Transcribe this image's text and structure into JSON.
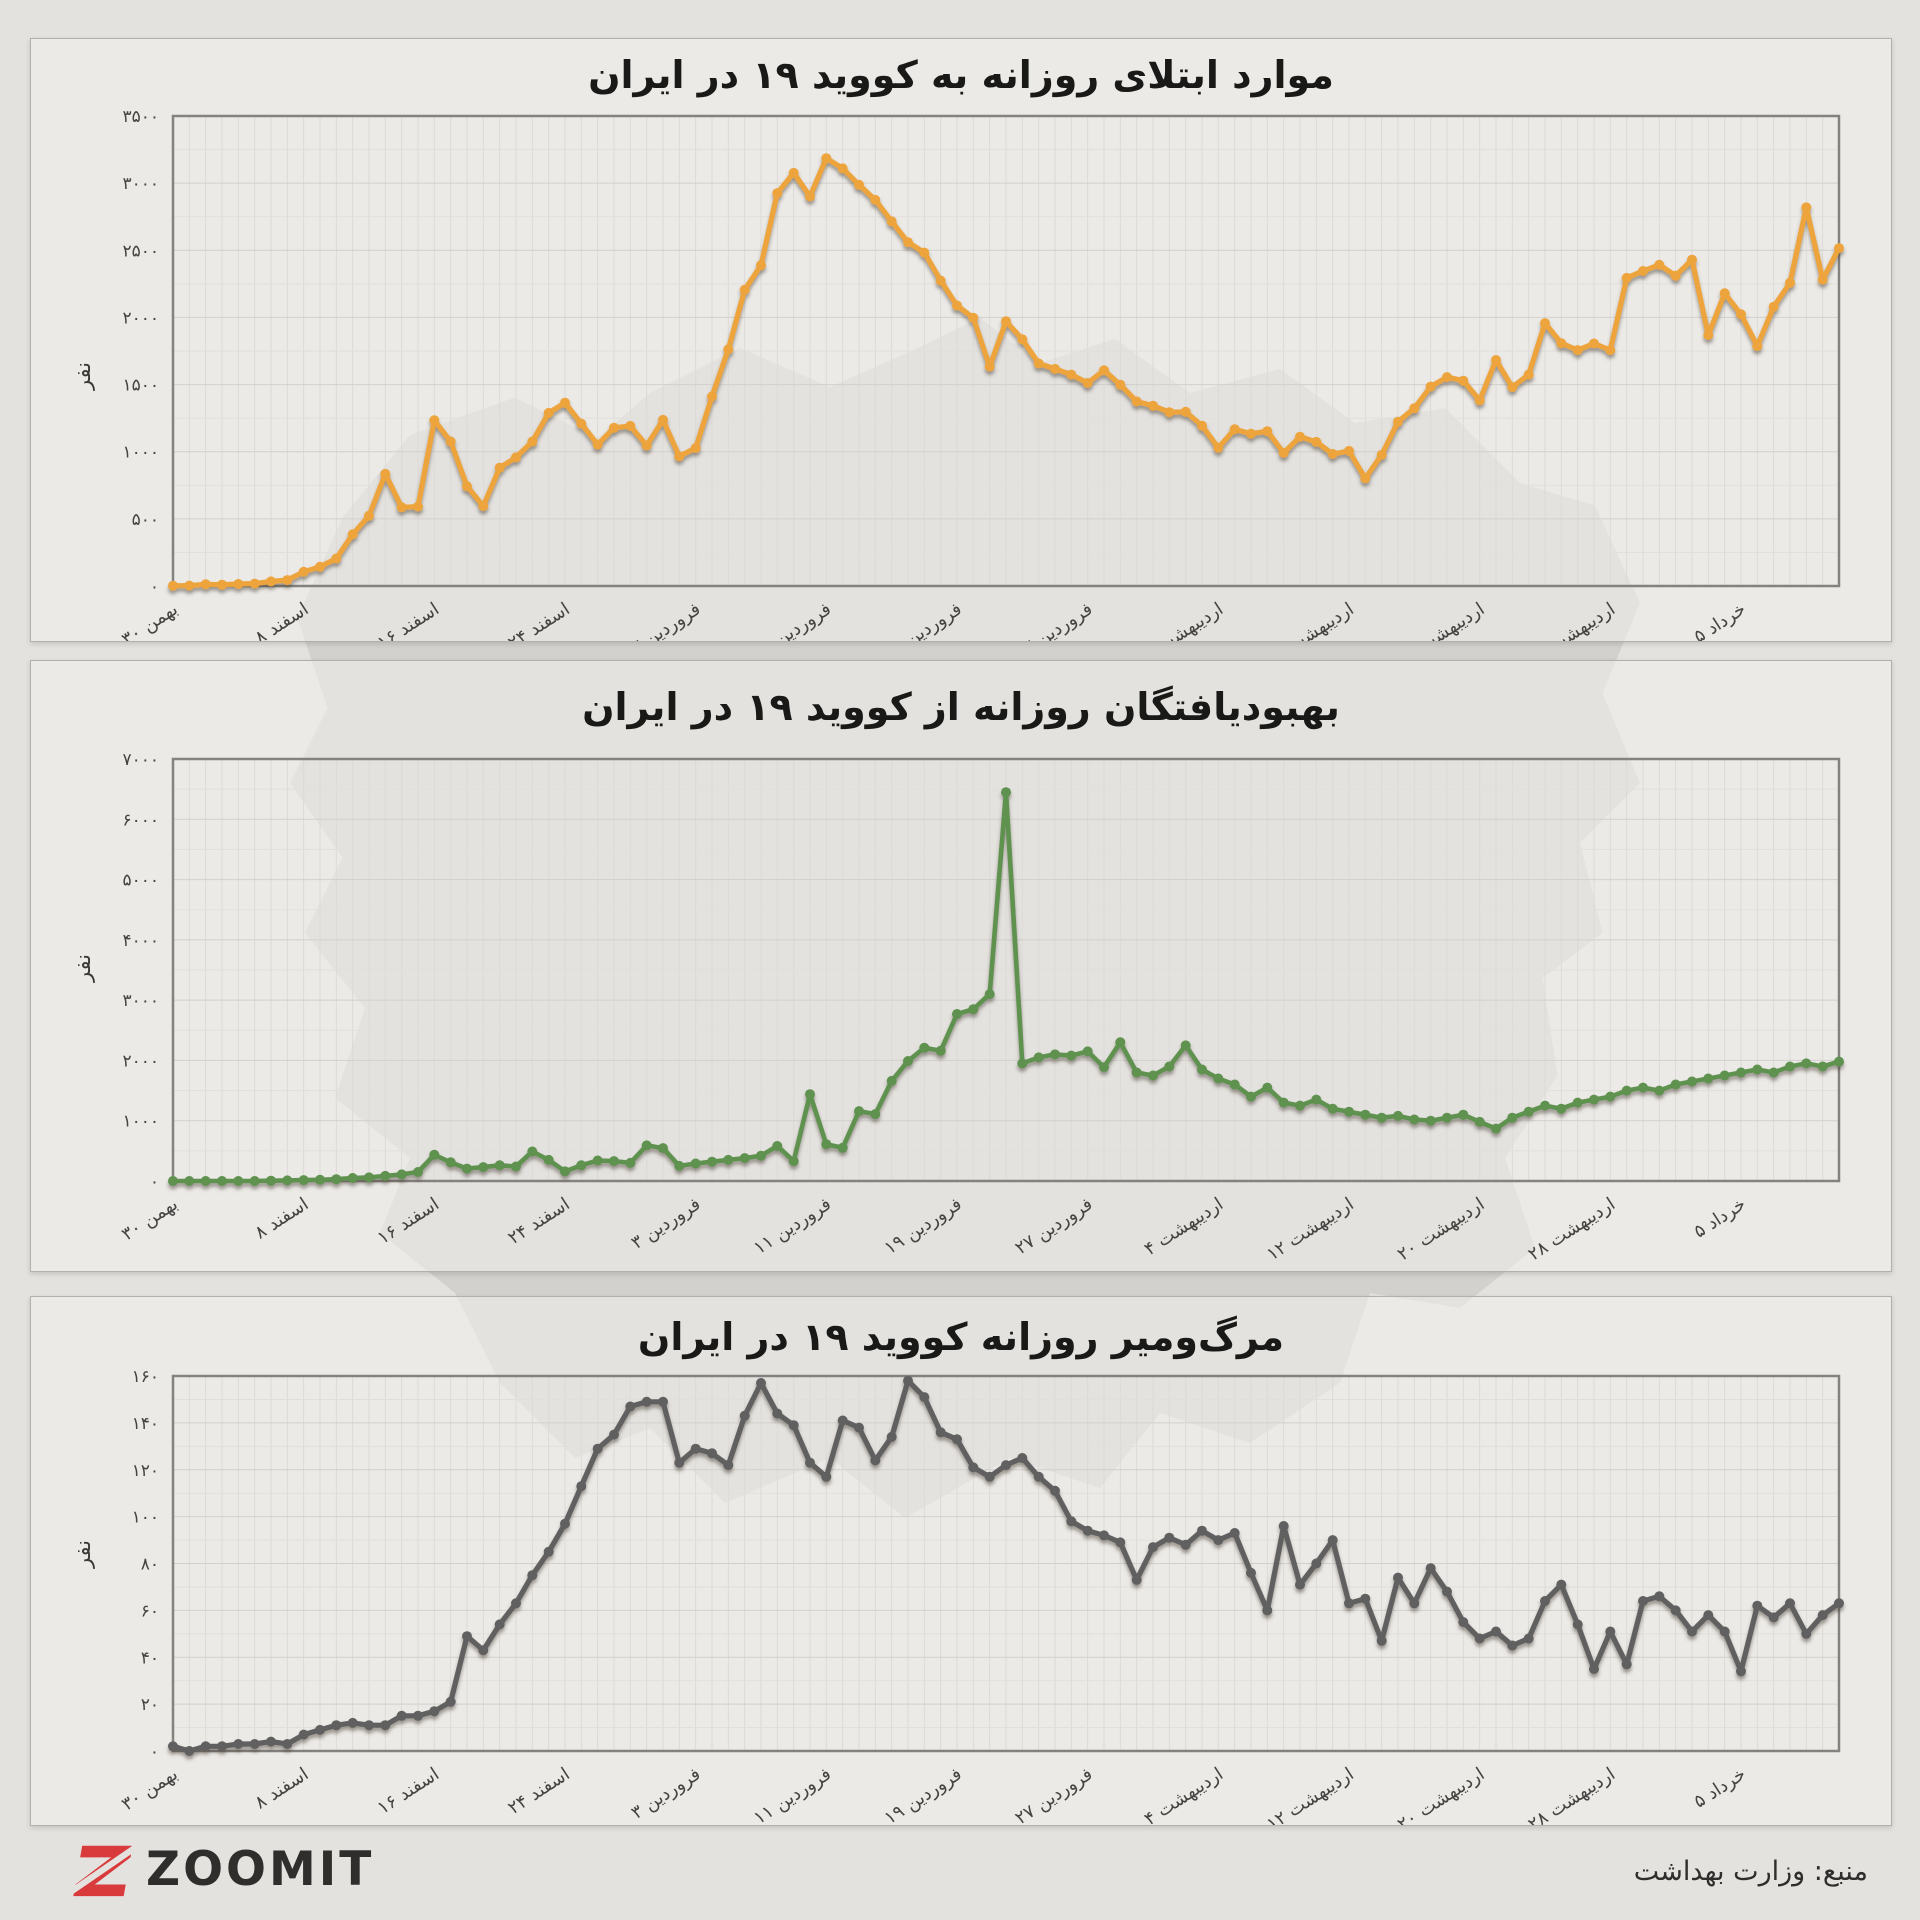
{
  "x_axis": {
    "tick_days": [
      0,
      8,
      16,
      24,
      32,
      40,
      48,
      56,
      64,
      72,
      80,
      88,
      96
    ],
    "tick_labels": [
      "۳۰ بهمن",
      "۸ اسفند",
      "۱۶ اسفند",
      "۲۴ اسفند",
      "۳ فروردین",
      "۱۱ فروردین",
      "۱۹ فروردین",
      "۲۷ فروردین",
      "۴ اردیبهشت",
      "۱۲ اردیبهشت",
      "۲۰ اردیبهشت",
      "۲۸ اردیبهشت",
      "۵ خرداد"
    ]
  },
  "chart_data": [
    {
      "type": "line",
      "title": "موارد ابتلای روزانه به کووید ۱۹ در ایران",
      "ylabel": "نفر",
      "ylim": [
        0,
        3500
      ],
      "ytick_step": 500,
      "grid": true,
      "legend": "none",
      "line_color": "#eda43c",
      "values": [
        2,
        3,
        13,
        10,
        15,
        18,
        34,
        44,
        106,
        143,
        205,
        385,
        523,
        835,
        586,
        591,
        1234,
        1076,
        743,
        595,
        881,
        958,
        1075,
        1289,
        1365,
        1209,
        1053,
        1178,
        1192,
        1046,
        1237,
        966,
        1028,
        1411,
        1762,
        2206,
        2389,
        2926,
        3076,
        2901,
        3186,
        3110,
        2988,
        2875,
        2715,
        2560,
        2483,
        2274,
        2089,
        1997,
        1634,
        1972,
        1837,
        1657,
        1617,
        1574,
        1512,
        1606,
        1499,
        1374,
        1343,
        1294,
        1297,
        1194,
        1030,
        1168,
        1134,
        1153,
        991,
        1112,
        1073,
        983,
        1006,
        802,
        976,
        1223,
        1323,
        1485,
        1556,
        1529,
        1383,
        1683,
        1481,
        1574,
        1958,
        1808,
        1757,
        1806,
        1757,
        2294,
        2346,
        2392,
        2311,
        2430,
        1869,
        2180,
        2023,
        1787,
        2080,
        2258,
        2819,
        2282,
        2516
      ]
    },
    {
      "type": "line",
      "title": "بهبودیافتگان روزانه از کووید ۱۹ در ایران",
      "ylabel": "نفر",
      "ylim": [
        0,
        7000
      ],
      "ytick_step": 1000,
      "grid": true,
      "legend": "none",
      "line_color": "#5e9150",
      "values": [
        0,
        0,
        0,
        0,
        0,
        0,
        5,
        10,
        15,
        20,
        30,
        49,
        60,
        85,
        110,
        150,
        435,
        310,
        205,
        230,
        260,
        240,
        490,
        350,
        160,
        260,
        340,
        330,
        300,
        590,
        545,
        250,
        290,
        320,
        350,
        380,
        420,
        580,
        330,
        1440,
        610,
        550,
        1160,
        1110,
        1660,
        1990,
        2210,
        2160,
        2770,
        2850,
        3100,
        6450,
        1950,
        2050,
        2100,
        2080,
        2150,
        1890,
        2300,
        1800,
        1750,
        1900,
        2250,
        1850,
        1700,
        1600,
        1400,
        1550,
        1300,
        1250,
        1350,
        1200,
        1150,
        1100,
        1050,
        1080,
        1020,
        1000,
        1050,
        1100,
        980,
        870,
        1050,
        1150,
        1250,
        1200,
        1300,
        1350,
        1400,
        1500,
        1550,
        1500,
        1600,
        1650,
        1700,
        1750,
        1800,
        1850,
        1800,
        1900,
        1950,
        1900,
        1980
      ]
    },
    {
      "type": "line",
      "title": "مرگ‌ومیر روزانه کووید ۱۹ در ایران",
      "ylabel": "نفر",
      "ylim": [
        0,
        160
      ],
      "ytick_step": 20,
      "grid": true,
      "legend": "none",
      "line_color": "#616161",
      "values": [
        2,
        0,
        2,
        2,
        3,
        3,
        4,
        3,
        7,
        9,
        11,
        12,
        11,
        11,
        15,
        15,
        17,
        21,
        49,
        43,
        54,
        63,
        75,
        85,
        97,
        113,
        129,
        135,
        147,
        149,
        149,
        123,
        129,
        127,
        122,
        143,
        157,
        144,
        139,
        123,
        117,
        141,
        138,
        124,
        134,
        158,
        151,
        136,
        133,
        121,
        117,
        122,
        125,
        117,
        111,
        98,
        94,
        92,
        89,
        73,
        87,
        91,
        88,
        94,
        90,
        93,
        76,
        60,
        96,
        71,
        80,
        90,
        63,
        65,
        47,
        74,
        63,
        78,
        68,
        55,
        48,
        51,
        45,
        48,
        64,
        71,
        54,
        35,
        51,
        37,
        64,
        66,
        60,
        51,
        58,
        51,
        34,
        62,
        57,
        63,
        50,
        58,
        63
      ]
    }
  ],
  "footer": {
    "logo_text": "ZOOMIT",
    "source_label": "منبع: وزارت بهداشت"
  }
}
